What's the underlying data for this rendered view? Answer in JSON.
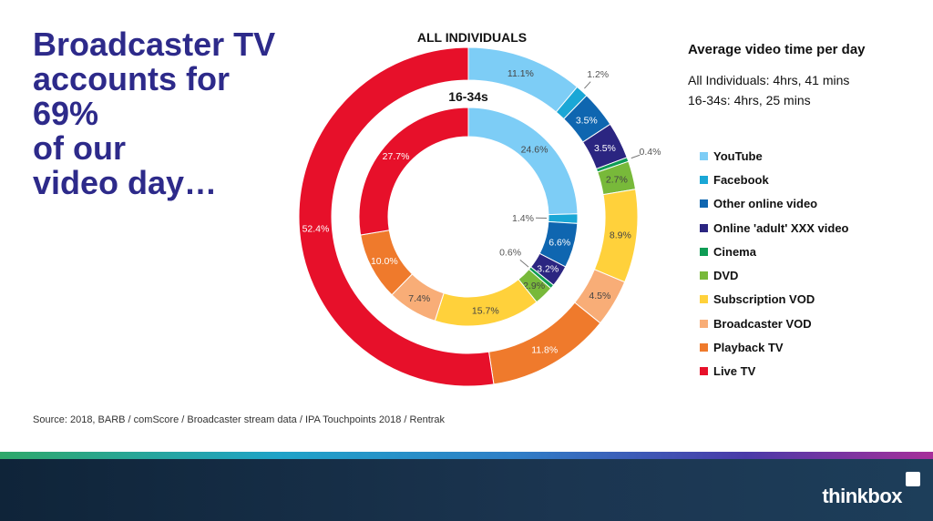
{
  "headline": {
    "lines": [
      "Broadcaster TV",
      "accounts for",
      "69%",
      "of our",
      "video day…"
    ]
  },
  "summary": {
    "title": "Average video time per day",
    "all_individuals": "All Individuals: 4hrs, 41 mins",
    "age_16_34": "16-34s: 4hrs, 25 mins"
  },
  "source": "Source: 2018, BARB / comScore / Broadcaster stream data / IPA Touchpoints 2018 / Rentrak",
  "brand": "thinkbox",
  "chart_data": {
    "type": "pie",
    "subtype": "donut-nested",
    "categories": [
      "YouTube",
      "Facebook",
      "Other online video",
      "Online 'adult' XXX video",
      "Cinema",
      "DVD",
      "Subscription VOD",
      "Broadcaster VOD",
      "Playback TV",
      "Live TV"
    ],
    "colors": [
      "#7dcdf6",
      "#1aa7d6",
      "#0f66b0",
      "#2b2581",
      "#0e9c55",
      "#78b93a",
      "#ffd13b",
      "#f8ad77",
      "#ef7a2c",
      "#e7102a"
    ],
    "series": [
      {
        "name": "All Individuals",
        "title": "ALL INDIVIDUALS",
        "ring": "outer",
        "values": [
          11.1,
          1.2,
          3.5,
          3.5,
          0.4,
          2.7,
          8.9,
          4.5,
          11.8,
          52.4
        ],
        "labels": [
          "11.1%",
          "1.2%",
          "3.5%",
          "3.5%",
          "0.4%",
          "2.7%",
          "8.9%",
          "4.5%",
          "11.8%",
          "52.4%"
        ]
      },
      {
        "name": "16-34s",
        "title": "16-34s",
        "ring": "inner",
        "values": [
          24.6,
          1.4,
          6.6,
          3.2,
          0.6,
          2.9,
          15.7,
          7.4,
          10.0,
          27.7
        ],
        "labels": [
          "24.6%",
          "1.4%",
          "6.6%",
          "3.2%",
          "0.6%",
          "2.9%",
          "15.7%",
          "7.4%",
          "10.0%",
          "27.7%"
        ]
      }
    ]
  }
}
